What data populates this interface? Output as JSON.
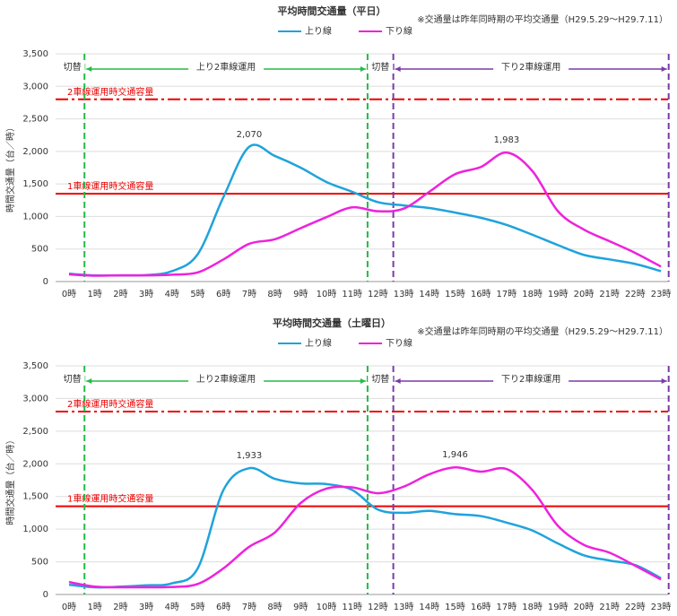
{
  "chart_data": [
    {
      "type": "line",
      "title": "平均時間交通量（平日）",
      "note": "※交通量は昨年同時期の平均交通量（H29.5.29～H29.7.11）",
      "y_label": "時間交通量（台／時）",
      "categories": [
        "0時",
        "1時",
        "2時",
        "3時",
        "4時",
        "5時",
        "6時",
        "7時",
        "8時",
        "9時",
        "10時",
        "11時",
        "12時",
        "13時",
        "14時",
        "15時",
        "16時",
        "17時",
        "18時",
        "19時",
        "20時",
        "21時",
        "22時",
        "23時"
      ],
      "series": [
        {
          "name": "上り線",
          "color": "#1fa3dc",
          "values": [
            120,
            95,
            95,
            100,
            160,
            420,
            1300,
            2070,
            1930,
            1750,
            1530,
            1380,
            1220,
            1170,
            1130,
            1060,
            980,
            870,
            720,
            560,
            410,
            340,
            270,
            160
          ],
          "value_labels": [
            null,
            null,
            null,
            null,
            null,
            null,
            null,
            "2,070",
            null,
            null,
            null,
            null,
            null,
            null,
            null,
            null,
            null,
            null,
            null,
            null,
            null,
            null,
            null,
            null
          ]
        },
        {
          "name": "下り線",
          "color": "#ee22dd",
          "values": [
            110,
            90,
            95,
            95,
            105,
            140,
            340,
            580,
            650,
            820,
            990,
            1140,
            1080,
            1120,
            1380,
            1650,
            1760,
            1983,
            1700,
            1080,
            800,
            620,
            440,
            230
          ],
          "value_labels": [
            null,
            null,
            null,
            null,
            null,
            null,
            null,
            null,
            null,
            null,
            null,
            null,
            null,
            null,
            null,
            null,
            null,
            "1,983",
            null,
            null,
            null,
            null,
            null,
            null
          ]
        }
      ],
      "ylim": [
        0,
        3500
      ],
      "yticks": [
        0,
        500,
        {
          "value": 1000,
          "label": "1,000"
        },
        {
          "value": 1500,
          "label": "1,500"
        },
        {
          "value": 2000,
          "label": "2,000"
        },
        {
          "value": 2500,
          "label": "2,500"
        },
        {
          "value": 3000,
          "label": "3,000"
        },
        {
          "value": 3500,
          "label": "3,500"
        }
      ],
      "grid": true,
      "reference_lines": [
        {
          "value": 2800,
          "label": "2車線運用時交通容量"
        },
        {
          "value": 1350,
          "label": "1車線運用時交通容量"
        }
      ],
      "periods": [
        "切替",
        "上り2車線運用",
        "切替",
        "下り2車線運用"
      ]
    },
    {
      "type": "line",
      "title": "平均時間交通量（土曜日）",
      "note": "※交通量は昨年同時期の平均交通量（H29.5.29～H29.7.11）",
      "y_label": "時間交通量（台／時）",
      "categories": [
        "0時",
        "1時",
        "2時",
        "3時",
        "4時",
        "5時",
        "6時",
        "7時",
        "8時",
        "9時",
        "10時",
        "11時",
        "12時",
        "13時",
        "14時",
        "15時",
        "16時",
        "17時",
        "18時",
        "19時",
        "20時",
        "21時",
        "22時",
        "23時"
      ],
      "series": [
        {
          "name": "上り線",
          "color": "#1fa3dc",
          "values": [
            150,
            110,
            120,
            140,
            170,
            400,
            1600,
            1933,
            1770,
            1700,
            1690,
            1600,
            1300,
            1250,
            1280,
            1230,
            1200,
            1100,
            980,
            780,
            600,
            520,
            450,
            250
          ],
          "value_labels": [
            null,
            null,
            null,
            null,
            null,
            null,
            null,
            "1,933",
            null,
            null,
            null,
            null,
            null,
            null,
            null,
            null,
            null,
            null,
            null,
            null,
            null,
            null,
            null,
            null
          ]
        },
        {
          "name": "下り線",
          "color": "#ee22dd",
          "values": [
            190,
            120,
            110,
            110,
            115,
            160,
            400,
            730,
            950,
            1400,
            1620,
            1640,
            1550,
            1650,
            1840,
            1946,
            1880,
            1920,
            1600,
            1050,
            760,
            640,
            440,
            230
          ],
          "value_labels": [
            null,
            null,
            null,
            null,
            null,
            null,
            null,
            null,
            null,
            null,
            null,
            null,
            null,
            null,
            null,
            "1,946",
            null,
            null,
            null,
            null,
            null,
            null,
            null,
            null
          ]
        }
      ],
      "ylim": [
        0,
        3500
      ],
      "yticks": [
        0,
        500,
        {
          "value": 1000,
          "label": "1,000"
        },
        {
          "value": 1500,
          "label": "1,500"
        },
        {
          "value": 2000,
          "label": "2,000"
        },
        {
          "value": 2500,
          "label": "2,500"
        },
        {
          "value": 3000,
          "label": "3,000"
        },
        {
          "value": 3500,
          "label": "3,500"
        }
      ],
      "grid": true,
      "reference_lines": [
        {
          "value": 2800,
          "label": "2車線運用時交通容量"
        },
        {
          "value": 1350,
          "label": "1車線運用時交通容量"
        }
      ],
      "periods": [
        "切替",
        "上り2車線運用",
        "切替",
        "下り2車線運用"
      ]
    }
  ]
}
